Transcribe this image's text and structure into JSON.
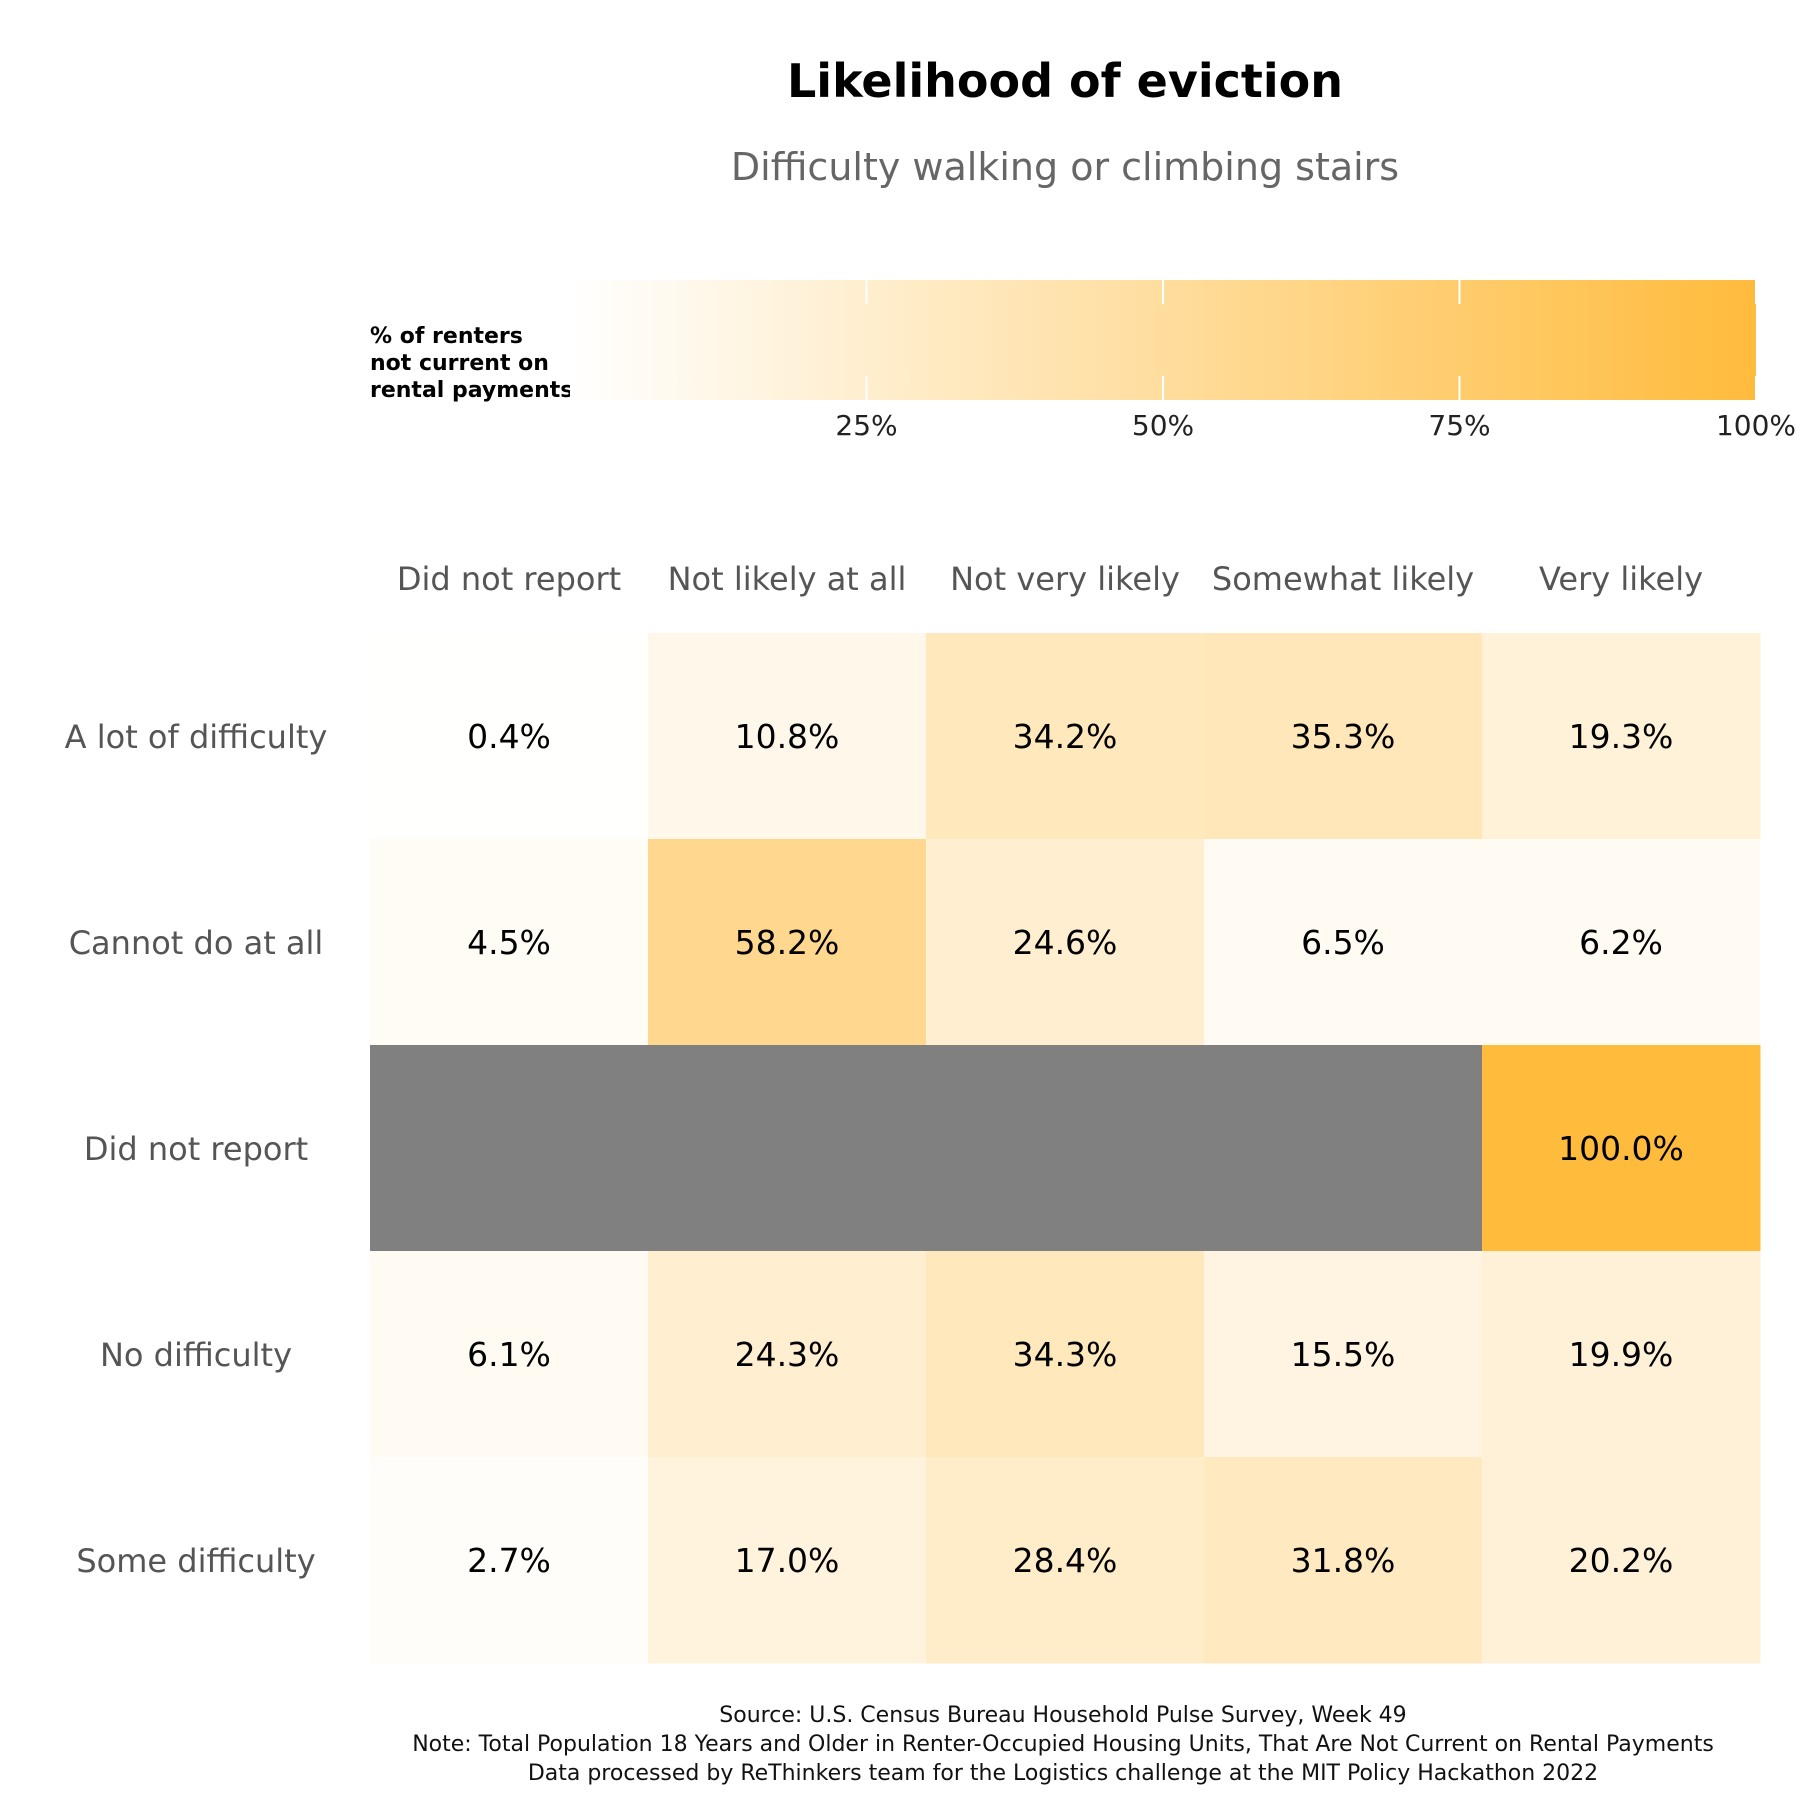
{
  "chart_data": {
    "type": "heatmap",
    "title": "Likelihood of eviction",
    "subtitle": "Difficulty walking or climbing stairs",
    "columns": [
      "Did not report",
      "Not likely at all",
      "Not very likely",
      "Somewhat likely",
      "Very likely"
    ],
    "rows": [
      "A lot of difficulty",
      "Cannot do at all",
      "Did not report",
      "No difficulty",
      "Some difficulty"
    ],
    "values": [
      [
        0.4,
        10.8,
        34.2,
        35.3,
        19.3
      ],
      [
        4.5,
        58.2,
        24.6,
        6.5,
        6.2
      ],
      [
        null,
        null,
        null,
        null,
        100.0
      ],
      [
        6.1,
        24.3,
        34.3,
        15.5,
        19.9
      ],
      [
        2.7,
        17.0,
        28.4,
        31.8,
        20.2
      ]
    ],
    "value_labels": [
      [
        "0.4%",
        "10.8%",
        "34.2%",
        "35.3%",
        "19.3%"
      ],
      [
        "4.5%",
        "58.2%",
        "24.6%",
        "6.5%",
        "6.2%"
      ],
      [
        "",
        "",
        "",
        "",
        "100.0%"
      ],
      [
        "6.1%",
        "24.3%",
        "34.3%",
        "15.5%",
        "19.9%"
      ],
      [
        "2.7%",
        "17.0%",
        "28.4%",
        "31.8%",
        "20.2%"
      ]
    ],
    "missing_color": "#808080",
    "color_scale": {
      "low": "#ffffff",
      "high": "#ffbb3c",
      "range": [
        0,
        100
      ]
    },
    "legend": {
      "title": [
        "% of renters",
        "not current on",
        "rental payments"
      ],
      "ticks": [
        25,
        50,
        75,
        100
      ],
      "tick_labels": [
        "25%",
        "50%",
        "75%",
        "100%"
      ],
      "placement": "top"
    },
    "caption": [
      "Source: U.S. Census Bureau Household Pulse Survey, Week 49",
      "Note: Total Population 18 Years and Older in Renter-Occupied Housing Units, That Are Not Current on Rental Payments",
      "Data processed by ReThinkers team for the Logistics challenge at the MIT Policy Hackathon 2022"
    ]
  }
}
